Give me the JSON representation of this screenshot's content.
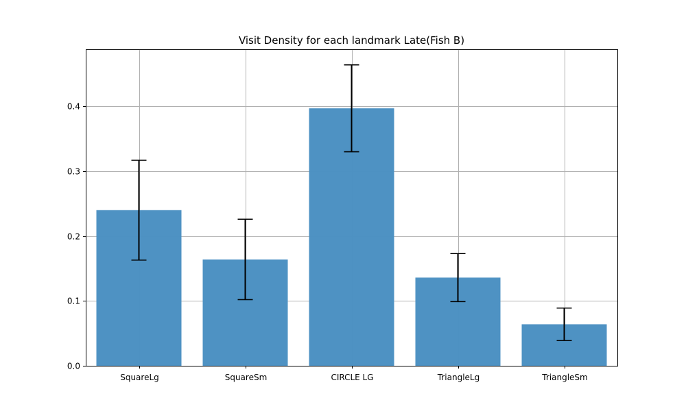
{
  "chart_data": {
    "type": "bar",
    "title": "Visit Density for each landmark Late(Fish B)",
    "xlabel": "",
    "ylabel": "",
    "categories": [
      "SquareLg",
      "SquareSm",
      "CIRCLE LG",
      "TriangleLg",
      "TriangleSm"
    ],
    "values": [
      0.24,
      0.164,
      0.397,
      0.136,
      0.064
    ],
    "errors": [
      0.077,
      0.062,
      0.067,
      0.037,
      0.025
    ],
    "ylim": [
      0,
      0.488
    ],
    "yticks": [
      0.0,
      0.1,
      0.2,
      0.3,
      0.4
    ],
    "ytick_labels": [
      "0.0",
      "0.1",
      "0.2",
      "0.3",
      "0.4"
    ],
    "grid": true,
    "bar_color": "#4a90c2",
    "error_color": "#000000",
    "grid_color": "#b0b0b0"
  }
}
